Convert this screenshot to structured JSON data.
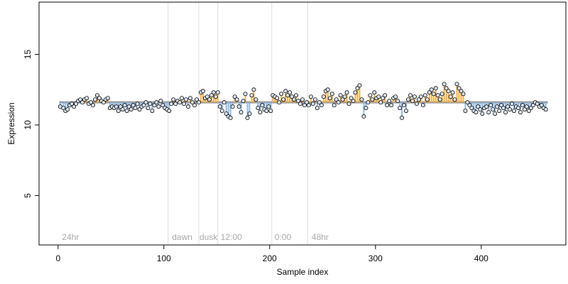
{
  "chart_data": {
    "type": "scatter",
    "xlabel": "Sample index",
    "ylabel": "Expression",
    "xlim": [
      -18,
      480
    ],
    "ylim": [
      1.5,
      18.7
    ],
    "x_ticks": [
      0,
      100,
      200,
      300,
      400
    ],
    "y_ticks": [
      5,
      10,
      15
    ],
    "baseline": 11.6,
    "colors": {
      "above": "#f5b041",
      "below": "#8fb8e6",
      "baseline": "#999999",
      "vline": "#dddddd",
      "annotation": "#a8a8a8",
      "point_fill": "#dde6f0"
    },
    "annotations": [
      {
        "x": 104,
        "label": ""
      },
      {
        "x": 133,
        "label": ""
      },
      {
        "x": 151,
        "label": ""
      },
      {
        "x": 202,
        "label": ""
      },
      {
        "x": 236,
        "label": ""
      }
    ],
    "annotation_labels": [
      {
        "x": 3,
        "label": "24hr"
      },
      {
        "x": 107,
        "label": "dawn"
      },
      {
        "x": 133,
        "label": "dusk"
      },
      {
        "x": 153,
        "label": "12:00"
      },
      {
        "x": 204,
        "label": "0:00"
      },
      {
        "x": 239,
        "label": "48hr"
      }
    ],
    "points": [
      [
        2,
        11.3
      ],
      [
        5,
        11.2
      ],
      [
        7,
        11.0
      ],
      [
        9,
        11.1
      ],
      [
        11,
        11.4
      ],
      [
        13,
        11.5
      ],
      [
        15,
        11.3
      ],
      [
        17,
        11.5
      ],
      [
        19,
        11.7
      ],
      [
        21,
        11.8
      ],
      [
        23,
        11.6
      ],
      [
        25,
        11.8
      ],
      [
        27,
        11.9
      ],
      [
        29,
        11.5
      ],
      [
        31,
        11.6
      ],
      [
        33,
        11.4
      ],
      [
        35,
        11.8
      ],
      [
        37,
        12.1
      ],
      [
        39,
        11.9
      ],
      [
        41,
        11.7
      ],
      [
        43,
        11.6
      ],
      [
        45,
        11.8
      ],
      [
        47,
        11.9
      ],
      [
        49,
        11.2
      ],
      [
        51,
        11.3
      ],
      [
        53,
        11.2
      ],
      [
        55,
        11.3
      ],
      [
        57,
        11.0
      ],
      [
        59,
        11.3
      ],
      [
        61,
        11.1
      ],
      [
        63,
        11.4
      ],
      [
        65,
        11.0
      ],
      [
        67,
        11.3
      ],
      [
        69,
        11.1
      ],
      [
        71,
        11.4
      ],
      [
        73,
        11.2
      ],
      [
        75,
        11.5
      ],
      [
        77,
        11.1
      ],
      [
        79,
        11.3
      ],
      [
        81,
        11.4
      ],
      [
        83,
        11.6
      ],
      [
        85,
        11.2
      ],
      [
        87,
        11.5
      ],
      [
        89,
        11.0
      ],
      [
        91,
        11.4
      ],
      [
        93,
        11.6
      ],
      [
        95,
        11.3
      ],
      [
        97,
        11.7
      ],
      [
        99,
        11.4
      ],
      [
        101,
        11.2
      ],
      [
        103,
        11.1
      ],
      [
        105,
        11.0
      ],
      [
        107,
        11.5
      ],
      [
        109,
        11.8
      ],
      [
        111,
        11.5
      ],
      [
        113,
        11.7
      ],
      [
        115,
        11.6
      ],
      [
        117,
        11.9
      ],
      [
        119,
        11.5
      ],
      [
        121,
        11.8
      ],
      [
        123,
        11.3
      ],
      [
        125,
        11.9
      ],
      [
        127,
        11.6
      ],
      [
        129,
        11.4
      ],
      [
        131,
        11.8
      ],
      [
        133,
        11.6
      ],
      [
        135,
        12.3
      ],
      [
        137,
        12.4
      ],
      [
        139,
        11.9
      ],
      [
        141,
        12.0
      ],
      [
        143,
        11.8
      ],
      [
        145,
        12.1
      ],
      [
        147,
        12.3
      ],
      [
        149,
        12.0
      ],
      [
        151,
        12.3
      ],
      [
        153,
        11.3
      ],
      [
        155,
        11.0
      ],
      [
        157,
        11.6
      ],
      [
        159,
        10.8
      ],
      [
        161,
        10.6
      ],
      [
        163,
        10.5
      ],
      [
        165,
        11.3
      ],
      [
        167,
        12.0
      ],
      [
        169,
        11.8
      ],
      [
        171,
        11.3
      ],
      [
        173,
        10.9
      ],
      [
        175,
        11.7
      ],
      [
        177,
        12.2
      ],
      [
        179,
        10.5
      ],
      [
        181,
        10.8
      ],
      [
        183,
        12.1
      ],
      [
        185,
        12.5
      ],
      [
        187,
        11.8
      ],
      [
        189,
        11.2
      ],
      [
        191,
        10.9
      ],
      [
        193,
        11.4
      ],
      [
        195,
        11.1
      ],
      [
        197,
        11.0
      ],
      [
        199,
        11.3
      ],
      [
        201,
        11.0
      ],
      [
        203,
        12.1
      ],
      [
        205,
        12.0
      ],
      [
        207,
        11.9
      ],
      [
        209,
        11.6
      ],
      [
        211,
        12.2
      ],
      [
        213,
        11.8
      ],
      [
        215,
        12.4
      ],
      [
        217,
        12.1
      ],
      [
        219,
        12.3
      ],
      [
        221,
        12.0
      ],
      [
        223,
        11.8
      ],
      [
        225,
        12.1
      ],
      [
        227,
        11.7
      ],
      [
        229,
        11.5
      ],
      [
        231,
        11.8
      ],
      [
        233,
        11.4
      ],
      [
        235,
        11.6
      ],
      [
        237,
        11.4
      ],
      [
        239,
        12.0
      ],
      [
        241,
        11.5
      ],
      [
        243,
        11.8
      ],
      [
        245,
        11.2
      ],
      [
        247,
        11.6
      ],
      [
        249,
        11.4
      ],
      [
        251,
        12.0
      ],
      [
        253,
        12.4
      ],
      [
        255,
        12.5
      ],
      [
        257,
        11.9
      ],
      [
        259,
        12.2
      ],
      [
        261,
        11.4
      ],
      [
        263,
        11.8
      ],
      [
        265,
        11.6
      ],
      [
        267,
        12.1
      ],
      [
        269,
        11.8
      ],
      [
        271,
        12.0
      ],
      [
        273,
        12.3
      ],
      [
        275,
        11.5
      ],
      [
        277,
        11.9
      ],
      [
        279,
        11.7
      ],
      [
        281,
        12.3
      ],
      [
        283,
        12.6
      ],
      [
        285,
        12.8
      ],
      [
        287,
        11.8
      ],
      [
        289,
        10.6
      ],
      [
        291,
        11.2
      ],
      [
        293,
        11.6
      ],
      [
        295,
        12.1
      ],
      [
        297,
        11.8
      ],
      [
        299,
        12.3
      ],
      [
        301,
        11.9
      ],
      [
        303,
        12.0
      ],
      [
        305,
        11.6
      ],
      [
        307,
        11.9
      ],
      [
        309,
        12.1
      ],
      [
        311,
        11.4
      ],
      [
        313,
        11.7
      ],
      [
        315,
        11.4
      ],
      [
        317,
        11.9
      ],
      [
        319,
        12.0
      ],
      [
        321,
        11.7
      ],
      [
        323,
        11.2
      ],
      [
        325,
        10.5
      ],
      [
        327,
        11.4
      ],
      [
        329,
        11.0
      ],
      [
        331,
        11.8
      ],
      [
        333,
        12.1
      ],
      [
        335,
        11.7
      ],
      [
        337,
        12.0
      ],
      [
        339,
        11.5
      ],
      [
        341,
        11.8
      ],
      [
        343,
        12.0
      ],
      [
        345,
        11.4
      ],
      [
        347,
        12.1
      ],
      [
        349,
        11.8
      ],
      [
        351,
        12.3
      ],
      [
        353,
        12.5
      ],
      [
        355,
        12.2
      ],
      [
        357,
        12.6
      ],
      [
        359,
        12.1
      ],
      [
        361,
        11.8
      ],
      [
        363,
        12.2
      ],
      [
        365,
        12.9
      ],
      [
        367,
        12.6
      ],
      [
        369,
        12.4
      ],
      [
        371,
        12.0
      ],
      [
        373,
        12.3
      ],
      [
        375,
        11.8
      ],
      [
        377,
        12.9
      ],
      [
        379,
        12.6
      ],
      [
        381,
        12.4
      ],
      [
        383,
        12.2
      ],
      [
        385,
        11.0
      ],
      [
        387,
        11.6
      ],
      [
        389,
        11.4
      ],
      [
        391,
        11.2
      ],
      [
        393,
        11.0
      ],
      [
        395,
        10.9
      ],
      [
        397,
        11.3
      ],
      [
        399,
        11.1
      ],
      [
        401,
        10.8
      ],
      [
        403,
        11.2
      ],
      [
        405,
        11.3
      ],
      [
        407,
        10.9
      ],
      [
        409,
        11.4
      ],
      [
        411,
        11.1
      ],
      [
        413,
        10.8
      ],
      [
        415,
        11.3
      ],
      [
        417,
        11.0
      ],
      [
        419,
        11.4
      ],
      [
        421,
        11.2
      ],
      [
        423,
        10.9
      ],
      [
        425,
        11.3
      ],
      [
        427,
        11.1
      ],
      [
        429,
        11.5
      ],
      [
        431,
        11.0
      ],
      [
        433,
        11.3
      ],
      [
        435,
        11.2
      ],
      [
        437,
        10.9
      ],
      [
        439,
        11.4
      ],
      [
        441,
        11.1
      ],
      [
        443,
        11.3
      ],
      [
        445,
        11.0
      ],
      [
        447,
        11.2
      ],
      [
        449,
        11.4
      ],
      [
        451,
        11.6
      ],
      [
        453,
        11.5
      ],
      [
        455,
        11.3
      ],
      [
        457,
        11.4
      ],
      [
        459,
        11.2
      ],
      [
        461,
        11.1
      ]
    ]
  }
}
